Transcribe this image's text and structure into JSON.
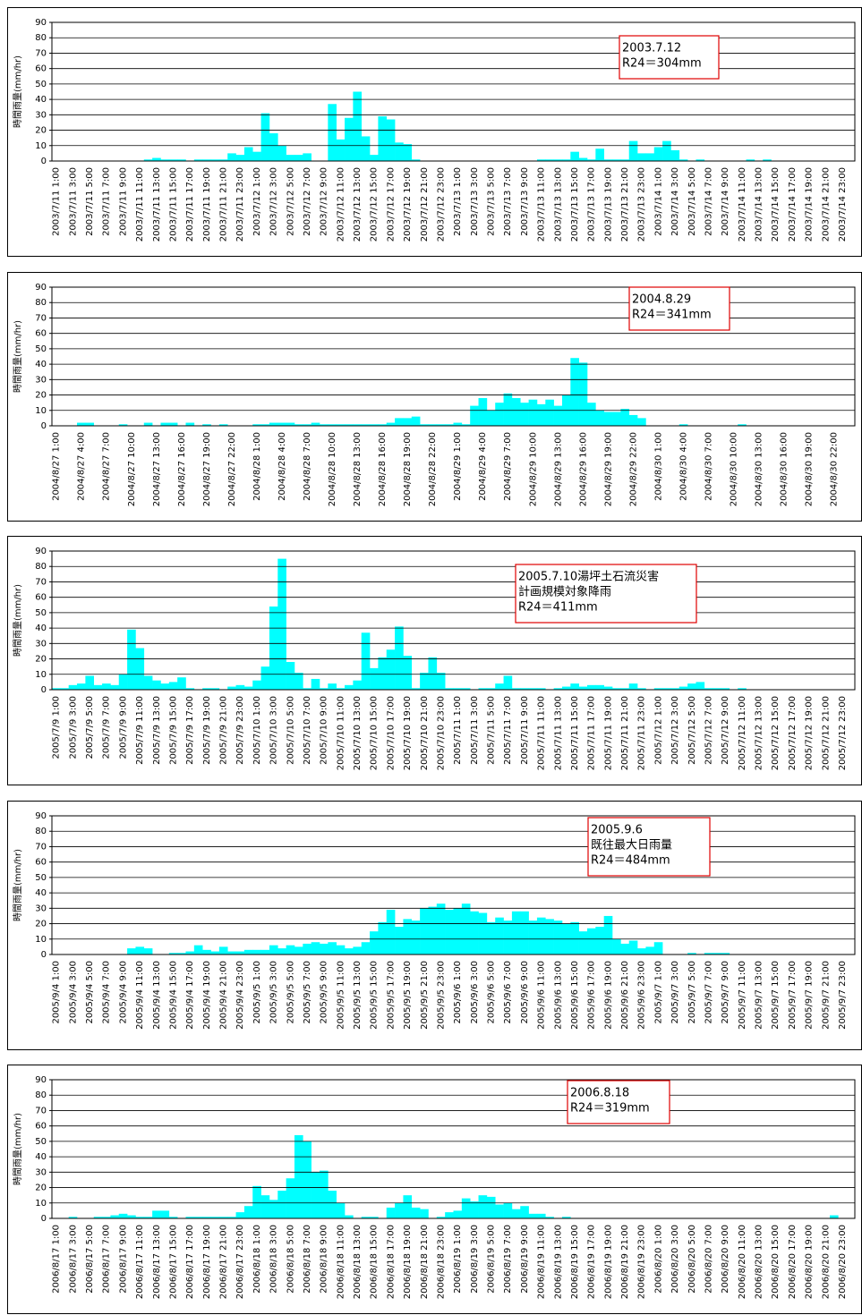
{
  "chart_data": [
    {
      "type": "bar",
      "ylabel": "時間雨量(mm/hr)",
      "annotation": [
        "2003.7.12",
        "R24＝304mm"
      ],
      "color": "#00ffff",
      "ylim": [
        0,
        90
      ],
      "yticks": [
        0,
        10,
        20,
        30,
        40,
        50,
        60,
        70,
        80,
        90
      ],
      "grid": true,
      "categories": [
        "2003/7/11 1:00",
        null,
        "2003/7/11 3:00",
        null,
        "2003/7/11 5:00",
        null,
        "2003/7/11 7:00",
        null,
        "2003/7/11 9:00",
        null,
        "2003/7/11 11:00",
        null,
        "2003/7/11 13:00",
        null,
        "2003/7/11 15:00",
        null,
        "2003/7/11 17:00",
        null,
        "2003/7/11 19:00",
        null,
        "2003/7/11 21:00",
        null,
        "2003/7/11 23:00",
        null,
        "2003/7/12 1:00",
        null,
        "2003/7/12 3:00",
        null,
        "2003/7/12 5:00",
        null,
        "2003/7/12 7:00",
        null,
        "2003/7/12 9:00",
        null,
        "2003/7/12 11:00",
        null,
        "2003/7/12 13:00",
        null,
        "2003/7/12 15:00",
        null,
        "2003/7/12 17:00",
        null,
        "2003/7/12 19:00",
        null,
        "2003/7/12 21:00",
        null,
        "2003/7/12 23:00",
        null,
        "2003/7/13 1:00",
        null,
        "2003/7/13 3:00",
        null,
        "2003/7/13 5:00",
        null,
        "2003/7/13 7:00",
        null,
        "2003/7/13 9:00",
        null,
        "2003/7/13 11:00",
        null,
        "2003/7/13 13:00",
        null,
        "2003/7/13 15:00",
        null,
        "2003/7/13 17:00",
        null,
        "2003/7/13 19:00",
        null,
        "2003/7/13 21:00",
        null,
        "2003/7/13 23:00",
        null,
        "2003/7/14 1:00",
        null,
        "2003/7/14 3:00",
        null,
        "2003/7/14 5:00",
        null,
        "2003/7/14 7:00",
        null,
        "2003/7/14 9:00",
        null,
        "2003/7/14 11:00",
        null,
        "2003/7/14 13:00",
        null,
        "2003/7/14 15:00",
        null,
        "2003/7/14 17:00",
        null,
        "2003/7/14 19:00",
        null,
        "2003/7/14 21:00",
        null,
        "2003/7/14 23:00",
        null
      ],
      "values": [
        0,
        0,
        0,
        0,
        0,
        0,
        0,
        0,
        0,
        0,
        0,
        1,
        2,
        1,
        1,
        1,
        0,
        1,
        1,
        1,
        1,
        5,
        4,
        9,
        6,
        31,
        18,
        10,
        4,
        4,
        5,
        0,
        0,
        37,
        14,
        28,
        45,
        16,
        4,
        29,
        27,
        12,
        11,
        1,
        0,
        0,
        0,
        0,
        0,
        0,
        0,
        0,
        0,
        0,
        0,
        0,
        0,
        0,
        1,
        1,
        1,
        1,
        6,
        2,
        1,
        8,
        1,
        1,
        1,
        13,
        5,
        5,
        9,
        13,
        7,
        1,
        0,
        1,
        0,
        0,
        0,
        0,
        0,
        1,
        0,
        1,
        0,
        0,
        0,
        0,
        0,
        0,
        0,
        0,
        0,
        0
      ]
    },
    {
      "type": "bar",
      "ylabel": "時間雨量(mm/hr)",
      "annotation": [
        "2004.8.29",
        "R24＝341mm"
      ],
      "color": "#00ffff",
      "ylim": [
        0,
        90
      ],
      "yticks": [
        0,
        10,
        20,
        30,
        40,
        50,
        60,
        70,
        80,
        90
      ],
      "grid": true,
      "categories": [
        "2004/8/27 1:00",
        null,
        null,
        "2004/8/27 4:00",
        null,
        null,
        "2004/8/27 7:00",
        null,
        null,
        "2004/8/27 10:00",
        null,
        null,
        "2004/8/27 13:00",
        null,
        null,
        "2004/8/27 16:00",
        null,
        null,
        "2004/8/27 19:00",
        null,
        null,
        "2004/8/27 22:00",
        null,
        null,
        "2004/8/28 1:00",
        null,
        null,
        "2004/8/28 4:00",
        null,
        null,
        "2004/8/28 7:00",
        null,
        null,
        "2004/8/28 10:00",
        null,
        null,
        "2004/8/28 13:00",
        null,
        null,
        "2004/8/28 16:00",
        null,
        null,
        "2004/8/28 19:00",
        null,
        null,
        "2004/8/28 22:00",
        null,
        null,
        "2004/8/29 1:00",
        null,
        null,
        "2004/8/29 4:00",
        null,
        null,
        "2004/8/29 7:00",
        null,
        null,
        "2004/8/29 10:00",
        null,
        null,
        "2004/8/29 13:00",
        null,
        null,
        "2004/8/29 16:00",
        null,
        null,
        "2004/8/29 19:00",
        null,
        null,
        "2004/8/29 22:00",
        null,
        null,
        "2004/8/30 1:00",
        null,
        null,
        "2004/8/30 4:00",
        null,
        null,
        "2004/8/30 7:00",
        null,
        null,
        "2004/8/30 10:00",
        null,
        null,
        "2004/8/30 13:00",
        null,
        null,
        "2004/8/30 16:00",
        null,
        null,
        "2004/8/30 19:00",
        null,
        null,
        "2004/8/30 22:00",
        null,
        null
      ],
      "values": [
        0,
        0,
        0,
        2,
        2,
        0,
        0,
        0,
        1,
        0,
        0,
        2,
        0,
        2,
        2,
        0,
        2,
        0,
        1,
        0,
        1,
        0,
        0,
        0,
        1,
        1,
        2,
        2,
        2,
        1,
        1,
        2,
        1,
        1,
        1,
        1,
        1,
        1,
        1,
        1,
        2,
        5,
        5,
        6,
        1,
        1,
        1,
        1,
        2,
        1,
        13,
        18,
        10,
        15,
        21,
        18,
        15,
        17,
        14,
        17,
        13,
        20,
        44,
        41,
        15,
        10,
        9,
        9,
        11,
        7,
        5,
        0,
        0,
        0,
        0,
        1,
        0,
        0,
        0,
        0,
        0,
        0,
        1,
        0,
        0,
        0,
        0,
        0,
        0,
        0,
        0,
        0,
        0,
        0,
        0,
        0
      ]
    },
    {
      "type": "bar",
      "ylabel": "時間雨量(mm/hr)",
      "annotation": [
        "2005.7.10湯坪土石流災害",
        "計画規模対象降雨",
        "R24＝411mm"
      ],
      "color": "#00ffff",
      "ylim": [
        0,
        90
      ],
      "yticks": [
        0,
        10,
        20,
        30,
        40,
        50,
        60,
        70,
        80,
        90
      ],
      "grid": true,
      "categories": [
        "2005/7/9 1:00",
        null,
        "2005/7/9 3:00",
        null,
        "2005/7/9 5:00",
        null,
        "2005/7/9 7:00",
        null,
        "2005/7/9 9:00",
        null,
        "2005/7/9 11:00",
        null,
        "2005/7/9 13:00",
        null,
        "2005/7/9 15:00",
        null,
        "2005/7/9 17:00",
        null,
        "2005/7/9 19:00",
        null,
        "2005/7/9 21:00",
        null,
        "2005/7/9 23:00",
        null,
        "2005/7/10 1:00",
        null,
        "2005/7/10 3:00",
        null,
        "2005/7/10 5:00",
        null,
        "2005/7/10 7:00",
        null,
        "2005/7/10 9:00",
        null,
        "2005/7/10 11:00",
        null,
        "2005/7/10 13:00",
        null,
        "2005/7/10 15:00",
        null,
        "2005/7/10 17:00",
        null,
        "2005/7/10 19:00",
        null,
        "2005/7/10 21:00",
        null,
        "2005/7/10 23:00",
        null,
        "2005/7/11 1:00",
        null,
        "2005/7/11 3:00",
        null,
        "2005/7/11 5:00",
        null,
        "2005/7/11 7:00",
        null,
        "2005/7/11 9:00",
        null,
        "2005/7/11 11:00",
        null,
        "2005/7/11 13:00",
        null,
        "2005/7/11 15:00",
        null,
        "2005/7/11 17:00",
        null,
        "2005/7/11 19:00",
        null,
        "2005/7/11 21:00",
        null,
        "2005/7/11 23:00",
        null,
        "2005/7/12 1:00",
        null,
        "2005/7/12 3:00",
        null,
        "2005/7/12 5:00",
        null,
        "2005/7/12 7:00",
        null,
        "2005/7/12 9:00",
        null,
        "2005/7/12 11:00",
        null,
        "2005/7/12 13:00",
        null,
        "2005/7/12 15:00",
        null,
        "2005/7/12 17:00",
        null,
        "2005/7/12 19:00",
        null,
        "2005/7/12 21:00",
        null,
        "2005/7/12 23:00",
        null
      ],
      "values": [
        1,
        1,
        3,
        4,
        9,
        3,
        4,
        3,
        10,
        39,
        27,
        9,
        6,
        4,
        5,
        8,
        1,
        0,
        1,
        1,
        0,
        2,
        3,
        2,
        6,
        15,
        54,
        85,
        18,
        11,
        1,
        7,
        1,
        4,
        1,
        3,
        6,
        37,
        14,
        21,
        26,
        41,
        22,
        1,
        11,
        21,
        11,
        1,
        1,
        1,
        0,
        1,
        1,
        4,
        9,
        1,
        1,
        1,
        1,
        0,
        1,
        2,
        4,
        2,
        3,
        3,
        2,
        1,
        1,
        4,
        1,
        0,
        1,
        1,
        1,
        2,
        4,
        5,
        1,
        1,
        1,
        0,
        1,
        0,
        0,
        0,
        0,
        0,
        0,
        0,
        0,
        0,
        0,
        0,
        0,
        0
      ]
    },
    {
      "type": "bar",
      "ylabel": "時間雨量(mm/hr)",
      "annotation": [
        "2005.9.6",
        "既往最大日雨量",
        "R24＝484mm"
      ],
      "color": "#00ffff",
      "ylim": [
        0,
        90
      ],
      "yticks": [
        0,
        10,
        20,
        30,
        40,
        50,
        60,
        70,
        80,
        90
      ],
      "grid": true,
      "categories": [
        "2005/9/4 1:00",
        null,
        "2005/9/4 3:00",
        null,
        "2005/9/4 5:00",
        null,
        "2005/9/4 7:00",
        null,
        "2005/9/4 9:00",
        null,
        "2005/9/4 11:00",
        null,
        "2005/9/4 13:00",
        null,
        "2005/9/4 15:00",
        null,
        "2005/9/4 17:00",
        null,
        "2005/9/4 19:00",
        null,
        "2005/9/4 21:00",
        null,
        "2005/9/4 23:00",
        null,
        "2005/9/5 1:00",
        null,
        "2005/9/5 3:00",
        null,
        "2005/9/5 5:00",
        null,
        "2005/9/5 7:00",
        null,
        "2005/9/5 9:00",
        null,
        "2005/9/5 11:00",
        null,
        "2005/9/5 13:00",
        null,
        "2005/9/5 15:00",
        null,
        "2005/9/5 17:00",
        null,
        "2005/9/5 19:00",
        null,
        "2005/9/5 21:00",
        null,
        "2005/9/5 23:00",
        null,
        "2005/9/6 1:00",
        null,
        "2005/9/6 3:00",
        null,
        "2005/9/6 5:00",
        null,
        "2005/9/6 7:00",
        null,
        "2005/9/6 9:00",
        null,
        "2005/9/6 11:00",
        null,
        "2005/9/6 13:00",
        null,
        "2005/9/6 15:00",
        null,
        "2005/9/6 17:00",
        null,
        "2005/9/6 19:00",
        null,
        "2005/9/6 21:00",
        null,
        "2005/9/6 23:00",
        null,
        "2005/9/7 1:00",
        null,
        "2005/9/7 3:00",
        null,
        "2005/9/7 5:00",
        null,
        "2005/9/7 7:00",
        null,
        "2005/9/7 9:00",
        null,
        "2005/9/7 11:00",
        null,
        "2005/9/7 13:00",
        null,
        "2005/9/7 15:00",
        null,
        "2005/9/7 17:00",
        null,
        "2005/9/7 19:00",
        null,
        "2005/9/7 21:00",
        null,
        "2005/9/7 23:00",
        null
      ],
      "values": [
        0,
        0,
        0,
        0,
        0,
        0,
        0,
        0,
        0,
        4,
        5,
        4,
        0,
        0,
        1,
        1,
        2,
        6,
        3,
        2,
        5,
        2,
        2,
        3,
        3,
        3,
        6,
        4,
        6,
        5,
        7,
        8,
        7,
        8,
        6,
        4,
        5,
        8,
        15,
        21,
        29,
        18,
        23,
        22,
        30,
        31,
        33,
        29,
        30,
        33,
        28,
        27,
        21,
        24,
        22,
        28,
        28,
        22,
        24,
        23,
        22,
        20,
        21,
        15,
        17,
        18,
        25,
        10,
        7,
        9,
        4,
        5,
        8,
        0,
        0,
        0,
        1,
        0,
        1,
        1,
        1,
        0,
        0,
        0,
        0,
        0,
        0,
        0,
        0,
        0,
        0,
        0,
        0,
        0,
        0,
        0
      ]
    },
    {
      "type": "bar",
      "ylabel": "時間雨量(mm/hr)",
      "annotation": [
        "2006.8.18",
        "R24＝319mm"
      ],
      "color": "#00ffff",
      "ylim": [
        0,
        90
      ],
      "yticks": [
        0,
        10,
        20,
        30,
        40,
        50,
        60,
        70,
        80,
        90
      ],
      "grid": true,
      "categories": [
        "2006/8/17 1:00",
        null,
        "2006/8/17 3:00",
        null,
        "2006/8/17 5:00",
        null,
        "2006/8/17 7:00",
        null,
        "2006/8/17 9:00",
        null,
        "2006/8/17 11:00",
        null,
        "2006/8/17 13:00",
        null,
        "2006/8/17 15:00",
        null,
        "2006/8/17 17:00",
        null,
        "2006/8/17 19:00",
        null,
        "2006/8/17 21:00",
        null,
        "2006/8/17 23:00",
        null,
        "2006/8/18 1:00",
        null,
        "2006/8/18 3:00",
        null,
        "2006/8/18 5:00",
        null,
        "2006/8/18 7:00",
        null,
        "2006/8/18 9:00",
        null,
        "2006/8/18 11:00",
        null,
        "2006/8/18 13:00",
        null,
        "2006/8/18 15:00",
        null,
        "2006/8/18 17:00",
        null,
        "2006/8/18 19:00",
        null,
        "2006/8/18 21:00",
        null,
        "2006/8/18 23:00",
        null,
        "2006/8/19 1:00",
        null,
        "2006/8/19 3:00",
        null,
        "2006/8/19 5:00",
        null,
        "2006/8/19 7:00",
        null,
        "2006/8/19 9:00",
        null,
        "2006/8/19 11:00",
        null,
        "2006/8/19 13:00",
        null,
        "2006/8/19 15:00",
        null,
        "2006/8/19 17:00",
        null,
        "2006/8/19 19:00",
        null,
        "2006/8/19 21:00",
        null,
        "2006/8/19 23:00",
        null,
        "2006/8/20 1:00",
        null,
        "2006/8/20 3:00",
        null,
        "2006/8/20 5:00",
        null,
        "2006/8/20 7:00",
        null,
        "2006/8/20 9:00",
        null,
        "2006/8/20 11:00",
        null,
        "2006/8/20 13:00",
        null,
        "2006/8/20 15:00",
        null,
        "2006/8/20 17:00",
        null,
        "2006/8/20 19:00",
        null,
        "2006/8/20 21:00",
        null,
        "2006/8/20 23:00",
        null
      ],
      "values": [
        0,
        0,
        1,
        0,
        0,
        1,
        1,
        2,
        3,
        2,
        1,
        1,
        5,
        5,
        1,
        0,
        1,
        1,
        1,
        1,
        1,
        1,
        4,
        8,
        21,
        15,
        12,
        18,
        26,
        54,
        50,
        30,
        31,
        18,
        10,
        2,
        0,
        1,
        1,
        0,
        7,
        10,
        15,
        7,
        6,
        0,
        1,
        4,
        5,
        13,
        11,
        15,
        14,
        9,
        10,
        6,
        8,
        3,
        3,
        1,
        0,
        1,
        0,
        0,
        0,
        0,
        0,
        0,
        0,
        0,
        0,
        0,
        0,
        0,
        0,
        0,
        0,
        0,
        0,
        0,
        0,
        0,
        0,
        0,
        0,
        0,
        0,
        0,
        0,
        0,
        0,
        0,
        0,
        2,
        0,
        0
      ]
    }
  ]
}
